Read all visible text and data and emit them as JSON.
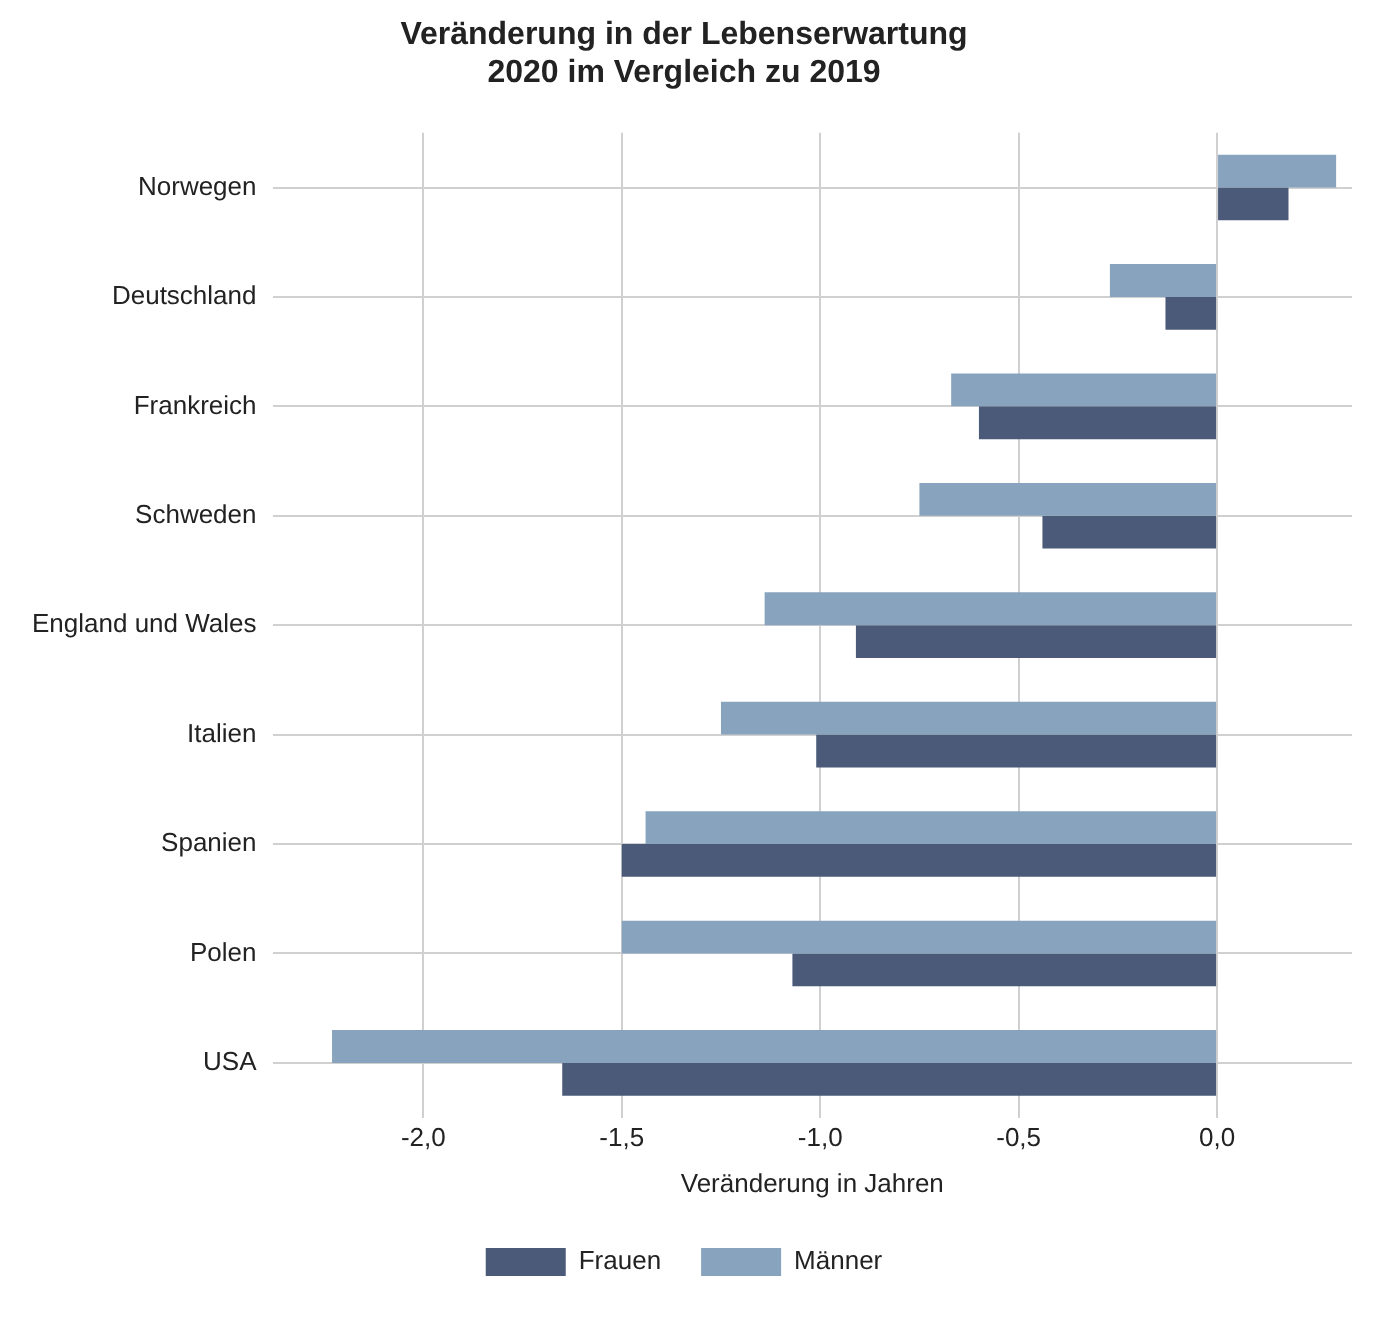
{
  "chart_data": {
    "type": "bar",
    "orientation": "horizontal",
    "title": "Veränderung in der Lebenserwartung\n2020 im Vergleich zu 2019",
    "xlabel": "Veränderung in Jahren",
    "categories": [
      "Norwegen",
      "Deutschland",
      "Frankreich",
      "Schweden",
      "England und Wales",
      "Italien",
      "Spanien",
      "Polen",
      "USA"
    ],
    "series": [
      {
        "name": "Frauen",
        "color": "#4a5a78",
        "values": [
          0.18,
          -0.13,
          -0.6,
          -0.44,
          -0.91,
          -1.01,
          -1.5,
          -1.07,
          -1.65
        ]
      },
      {
        "name": "Männer",
        "color": "#87a3bd",
        "values": [
          0.3,
          -0.27,
          -0.67,
          -0.75,
          -1.14,
          -1.25,
          -1.44,
          -1.5,
          -2.23
        ]
      }
    ],
    "xlim": [
      -2.38,
      0.34
    ],
    "xticks": [
      {
        "value": -2,
        "label": "-2,0"
      },
      {
        "value": -1.5,
        "label": "-1,5"
      },
      {
        "value": -1,
        "label": "-1,0"
      },
      {
        "value": -0.5,
        "label": "-0,5"
      },
      {
        "value": 0,
        "label": "0,0"
      }
    ],
    "grid": true,
    "legend": "bottom"
  }
}
